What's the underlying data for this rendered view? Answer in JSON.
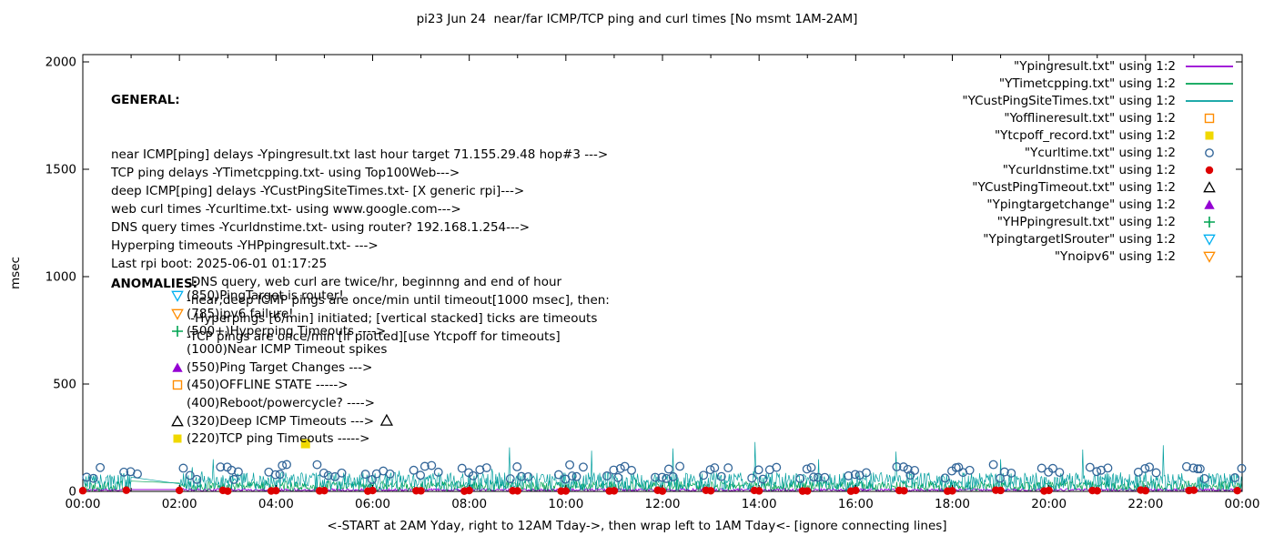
{
  "chart_data": {
    "type": "line",
    "title": "pi23 Jun 24  near/far ICMP/TCP ping and curl times [No msmt 1AM-2AM]",
    "xlabel": "<-START at 2AM Yday, right to 12AM Tday->, then wrap left to 1AM Tday<- [ignore connecting lines]",
    "ylabel": "msec",
    "ylim": [
      0,
      2000
    ],
    "x_hours": [
      0,
      24
    ],
    "grid": false,
    "legend_position": "top-right",
    "x_ticks": [
      "00:00",
      "02:00",
      "04:00",
      "06:00",
      "08:00",
      "10:00",
      "12:00",
      "14:00",
      "16:00",
      "18:00",
      "20:00",
      "22:00",
      "00:00"
    ],
    "y_ticks": [
      0,
      500,
      1000,
      1500,
      2000
    ],
    "gap_hours": [
      1,
      2
    ],
    "legend": [
      {
        "label": "\"Ypingresult.txt\" using 1:2",
        "color": "#9400d3",
        "glyph": "line"
      },
      {
        "label": "\"YTimetcpping.txt\" using 1:2",
        "color": "#00a352",
        "glyph": "line"
      },
      {
        "label": "\"YCustPingSiteTimes.txt\" using 1:2",
        "color": "#009e9e",
        "glyph": "line"
      },
      {
        "label": "\"Yofflineresult.txt\" using 1:2",
        "color": "#ff8c00",
        "glyph": "square-open"
      },
      {
        "label": "\"Ytcpoff_record.txt\" using 1:2",
        "color": "#f0d800",
        "glyph": "square-filled"
      },
      {
        "label": "\"Ycurltime.txt\" using 1:2",
        "color": "#336699",
        "glyph": "circle-open"
      },
      {
        "label": "\"Ycurldnstime.txt\" using 1:2",
        "color": "#dd0000",
        "glyph": "circle-filled"
      },
      {
        "label": "\"YCustPingTimeout.txt\" using 1:2",
        "color": "#000000",
        "glyph": "triangle-open"
      },
      {
        "label": "\"Ypingtargetchange\" using 1:2",
        "color": "#9400d3",
        "glyph": "triangle-filled"
      },
      {
        "label": "\"YHPpingresult.txt\" using 1:2",
        "color": "#00a352",
        "glyph": "plus"
      },
      {
        "label": "\"YpingtargetISrouter\" using 1:2",
        "color": "#00b0f0",
        "glyph": "triangle-down-open"
      },
      {
        "label": "\"Ynoipv6\" using 1:2",
        "color": "#ff8c00",
        "glyph": "triangle-down-open"
      }
    ],
    "noise_series": [
      {
        "name": "Ypingresult",
        "color": "#9400d3",
        "width": 0.9,
        "min": 1,
        "max": 13,
        "seed": 11,
        "spikes": []
      },
      {
        "name": "YTimetcpping",
        "color": "#00a352",
        "width": 0.7,
        "min": 2,
        "max": 48,
        "seed": 22,
        "spikes": []
      },
      {
        "name": "YCustPingSiteTimes",
        "color": "#009e9e",
        "width": 0.7,
        "min": 4,
        "max": 88,
        "seed": 33,
        "spikes": [
          {
            "h": 2.7,
            "v": 150
          },
          {
            "h": 8.83,
            "v": 205
          },
          {
            "h": 10.53,
            "v": 190
          },
          {
            "h": 12.22,
            "v": 200
          },
          {
            "h": 13.92,
            "v": 230
          },
          {
            "h": 15.24,
            "v": 150
          },
          {
            "h": 16.84,
            "v": 185
          },
          {
            "h": 19.0,
            "v": 150
          },
          {
            "h": 20.7,
            "v": 195
          },
          {
            "h": 22.36,
            "v": 215
          }
        ]
      }
    ],
    "markers": {
      "curl": {
        "name": "Ycurltime",
        "color": "#336699",
        "shape": "circle-open",
        "hour_offsets": [
          0.08,
          0.85
        ],
        "cluster": [
          2,
          3
        ],
        "value_range": [
          55,
          125
        ],
        "seed": 44
      },
      "dns": {
        "name": "Ycurldnstime",
        "color": "#dd0000",
        "shape": "circle-filled",
        "hour_offsets": [
          0.0,
          0.9
        ],
        "value_range": [
          1,
          6
        ],
        "seed": 55
      },
      "deep_timeout": {
        "name": "YCustPingTimeout",
        "color": "#000000",
        "shape": "triangle-open",
        "points": [
          {
            "h": 6.29,
            "v": 330
          }
        ]
      },
      "tcp_timeout": {
        "name": "Ytcpoff_record",
        "color": "#f0d800",
        "shape": "square-filled",
        "points": [
          {
            "h": 4.61,
            "v": 222
          }
        ]
      }
    }
  },
  "general": {
    "heading": "GENERAL:",
    "lines": [
      "near ICMP[ping] delays -Ypingresult.txt last hour target 71.155.29.48 hop#3 --->",
      "TCP ping delays -YTimetcpping.txt- using Top100Web--->",
      "deep ICMP[ping] delays -YCustPingSiteTimes.txt- [X generic rpi]--->",
      "web curl times -Ycurltime.txt- using www.google.com--->",
      "DNS query times -Ycurldnstime.txt- using router? 192.168.1.254--->",
      "Hyperping timeouts -YHPpingresult.txt- --->",
      "Last rpi boot: 2025-06-01 01:17:25"
    ],
    "notes": [
      "-DNS query, web curl are twice/hr, beginnng and end of hour",
      "-near,deep ICMP pings are once/min until timeout[1000 msec], then:",
      " -Hyperpings [6/min] initiated; [vertical stacked] ticks are timeouts",
      "-TCP pings are once/min [if plotted][use Ytcpoff for timeouts]"
    ]
  },
  "anomalies": {
    "heading": "ANOMALIES:",
    "items": [
      {
        "marker": "triangle-down-open",
        "color": "#00b0f0",
        "text": "(850)PingTarget is router!"
      },
      {
        "marker": "triangle-down-open",
        "color": "#ff8c00",
        "text": "(785)ipv6 failure!"
      },
      {
        "marker": "plus",
        "color": "#00a352",
        "text": "(500+)Hyperping Timeouts ---->"
      },
      {
        "marker": null,
        "color": null,
        "text": "(1000)Near ICMP Timeout spikes"
      },
      {
        "marker": "triangle-filled",
        "color": "#9400d3",
        "text": "(550)Ping Target Changes --->"
      },
      {
        "marker": "square-open",
        "color": "#ff8c00",
        "text": "(450)OFFLINE STATE ----->"
      },
      {
        "marker": null,
        "color": null,
        "text": "(400)Reboot/powercycle? ---->"
      },
      {
        "marker": "triangle-open",
        "color": "#000000",
        "text": "(320)Deep ICMP Timeouts --->"
      },
      {
        "marker": "square-filled",
        "color": "#f0d800",
        "text": "(220)TCP ping Timeouts ----->"
      }
    ]
  }
}
